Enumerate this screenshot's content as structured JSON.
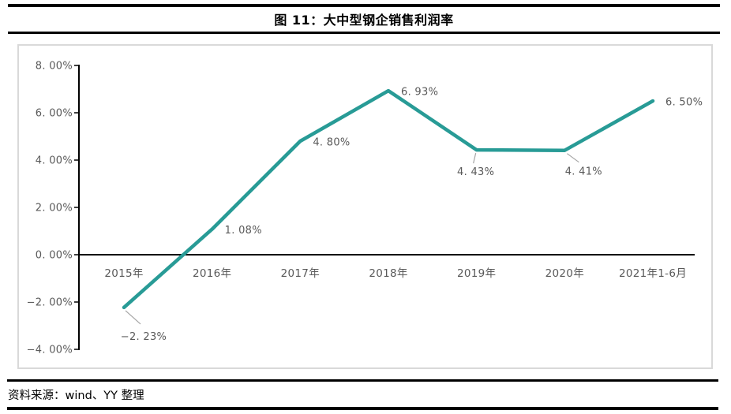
{
  "page": {
    "title": "图 11：大中型钢企销售利润率",
    "source": "资料来源：wind、YY 整理"
  },
  "colors": {
    "line": "#289b96",
    "label_gray": "#595959",
    "leader_gray": "#a6a6a6",
    "axis_black": "#000000",
    "chart_border": "#d9d9d9"
  },
  "chart_data": {
    "type": "line",
    "title": "图 11：大中型钢企销售利润率",
    "categories": [
      "2015年",
      "2016年",
      "2017年",
      "2018年",
      "2019年",
      "2020年",
      "2021年1-6月"
    ],
    "series": [
      {
        "name": "大中型钢企销售利润率",
        "values": [
          -2.23,
          1.08,
          4.8,
          6.93,
          4.43,
          4.41,
          6.5
        ]
      }
    ],
    "point_labels": [
      "−2. 23%",
      "1. 08%",
      "4. 80%",
      "6. 93%",
      "4. 43%",
      "4. 41%",
      "6. 50%"
    ],
    "label_placement": [
      "leader-below-right",
      "right",
      "right",
      "right",
      "leader-below",
      "leader-below-right-short",
      "right"
    ],
    "y_ticks": [
      {
        "value": 8,
        "label": "8. 00%"
      },
      {
        "value": 6,
        "label": "6. 00%"
      },
      {
        "value": 4,
        "label": "4. 00%"
      },
      {
        "value": 2,
        "label": "2. 00%"
      },
      {
        "value": 0,
        "label": "0. 00%"
      },
      {
        "value": -2,
        "label": "−2. 00%"
      },
      {
        "value": -4,
        "label": "−4. 00%"
      }
    ],
    "ylim": [
      -4,
      8
    ],
    "xlabel": "",
    "ylabel": "",
    "grid": false,
    "legend": "none",
    "line_color": "#289b96",
    "markers": false
  }
}
